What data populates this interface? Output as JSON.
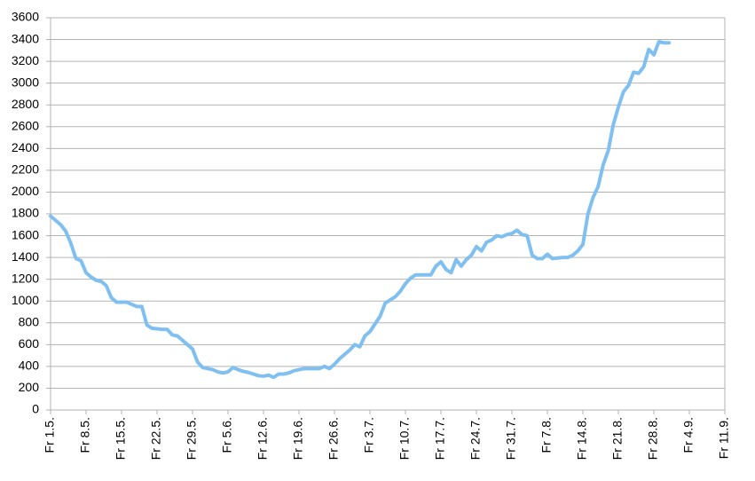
{
  "chart_data": {
    "type": "line",
    "categories": [
      "Fr 1.5.",
      null,
      null,
      null,
      null,
      null,
      null,
      "Fr 8.5.",
      null,
      null,
      null,
      null,
      null,
      null,
      "Fr 15.5.",
      null,
      null,
      null,
      null,
      null,
      null,
      "Fr 22.5.",
      null,
      null,
      null,
      null,
      null,
      null,
      "Fr 29.5.",
      null,
      null,
      null,
      null,
      null,
      null,
      "Fr 5.6.",
      null,
      null,
      null,
      null,
      null,
      null,
      "Fr 12.6.",
      null,
      null,
      null,
      null,
      null,
      null,
      "Fr 19.6.",
      null,
      null,
      null,
      null,
      null,
      null,
      "Fr 26.6.",
      null,
      null,
      null,
      null,
      null,
      null,
      "Fr 3.7.",
      null,
      null,
      null,
      null,
      null,
      null,
      "Fr 10.7.",
      null,
      null,
      null,
      null,
      null,
      null,
      "Fr 17.7.",
      null,
      null,
      null,
      null,
      null,
      null,
      "Fr 24.7.",
      null,
      null,
      null,
      null,
      null,
      null,
      "Fr 31.7.",
      null,
      null,
      null,
      null,
      null,
      null,
      "Fr 7.8.",
      null,
      null,
      null,
      null,
      null,
      null,
      "Fr 14.8.",
      null,
      null,
      null,
      null,
      null,
      null,
      "Fr 21.8.",
      null,
      null,
      null,
      null,
      null,
      null,
      "Fr 28.8.",
      null,
      null,
      null,
      null,
      null,
      null,
      "Fr 4.9.",
      null,
      null,
      null,
      null,
      null,
      null,
      "Fr 11.9."
    ],
    "values": [
      1780,
      1740,
      1700,
      1640,
      1530,
      1390,
      1370,
      1260,
      1220,
      1190,
      1180,
      1140,
      1030,
      990,
      990,
      990,
      970,
      950,
      950,
      780,
      750,
      745,
      740,
      740,
      690,
      680,
      640,
      600,
      560,
      440,
      390,
      380,
      370,
      350,
      340,
      350,
      390,
      370,
      355,
      345,
      330,
      315,
      310,
      320,
      300,
      330,
      330,
      340,
      360,
      370,
      380,
      380,
      380,
      380,
      400,
      380,
      420,
      470,
      510,
      550,
      600,
      580,
      680,
      720,
      790,
      860,
      980,
      1010,
      1040,
      1090,
      1160,
      1210,
      1240,
      1240,
      1240,
      1240,
      1320,
      1360,
      1290,
      1260,
      1380,
      1320,
      1380,
      1420,
      1500,
      1460,
      1540,
      1560,
      1600,
      1590,
      1610,
      1620,
      1650,
      1610,
      1600,
      1420,
      1390,
      1390,
      1430,
      1390,
      1395,
      1400,
      1400,
      1420,
      1460,
      1520,
      1800,
      1950,
      2050,
      2250,
      2380,
      2620,
      2780,
      2920,
      2980,
      3100,
      3090,
      3150,
      3310,
      3260,
      3380,
      3370,
      3370,
      null,
      null,
      null,
      null,
      null,
      null,
      null,
      null,
      null,
      null,
      null
    ],
    "color": "#80c0f0",
    "ylim": [
      0,
      3600
    ],
    "yticks": [
      0,
      200,
      400,
      600,
      800,
      1000,
      1200,
      1400,
      1600,
      1800,
      2000,
      2200,
      2400,
      2600,
      2800,
      3000,
      3200,
      3400,
      3600
    ],
    "grid": true
  }
}
